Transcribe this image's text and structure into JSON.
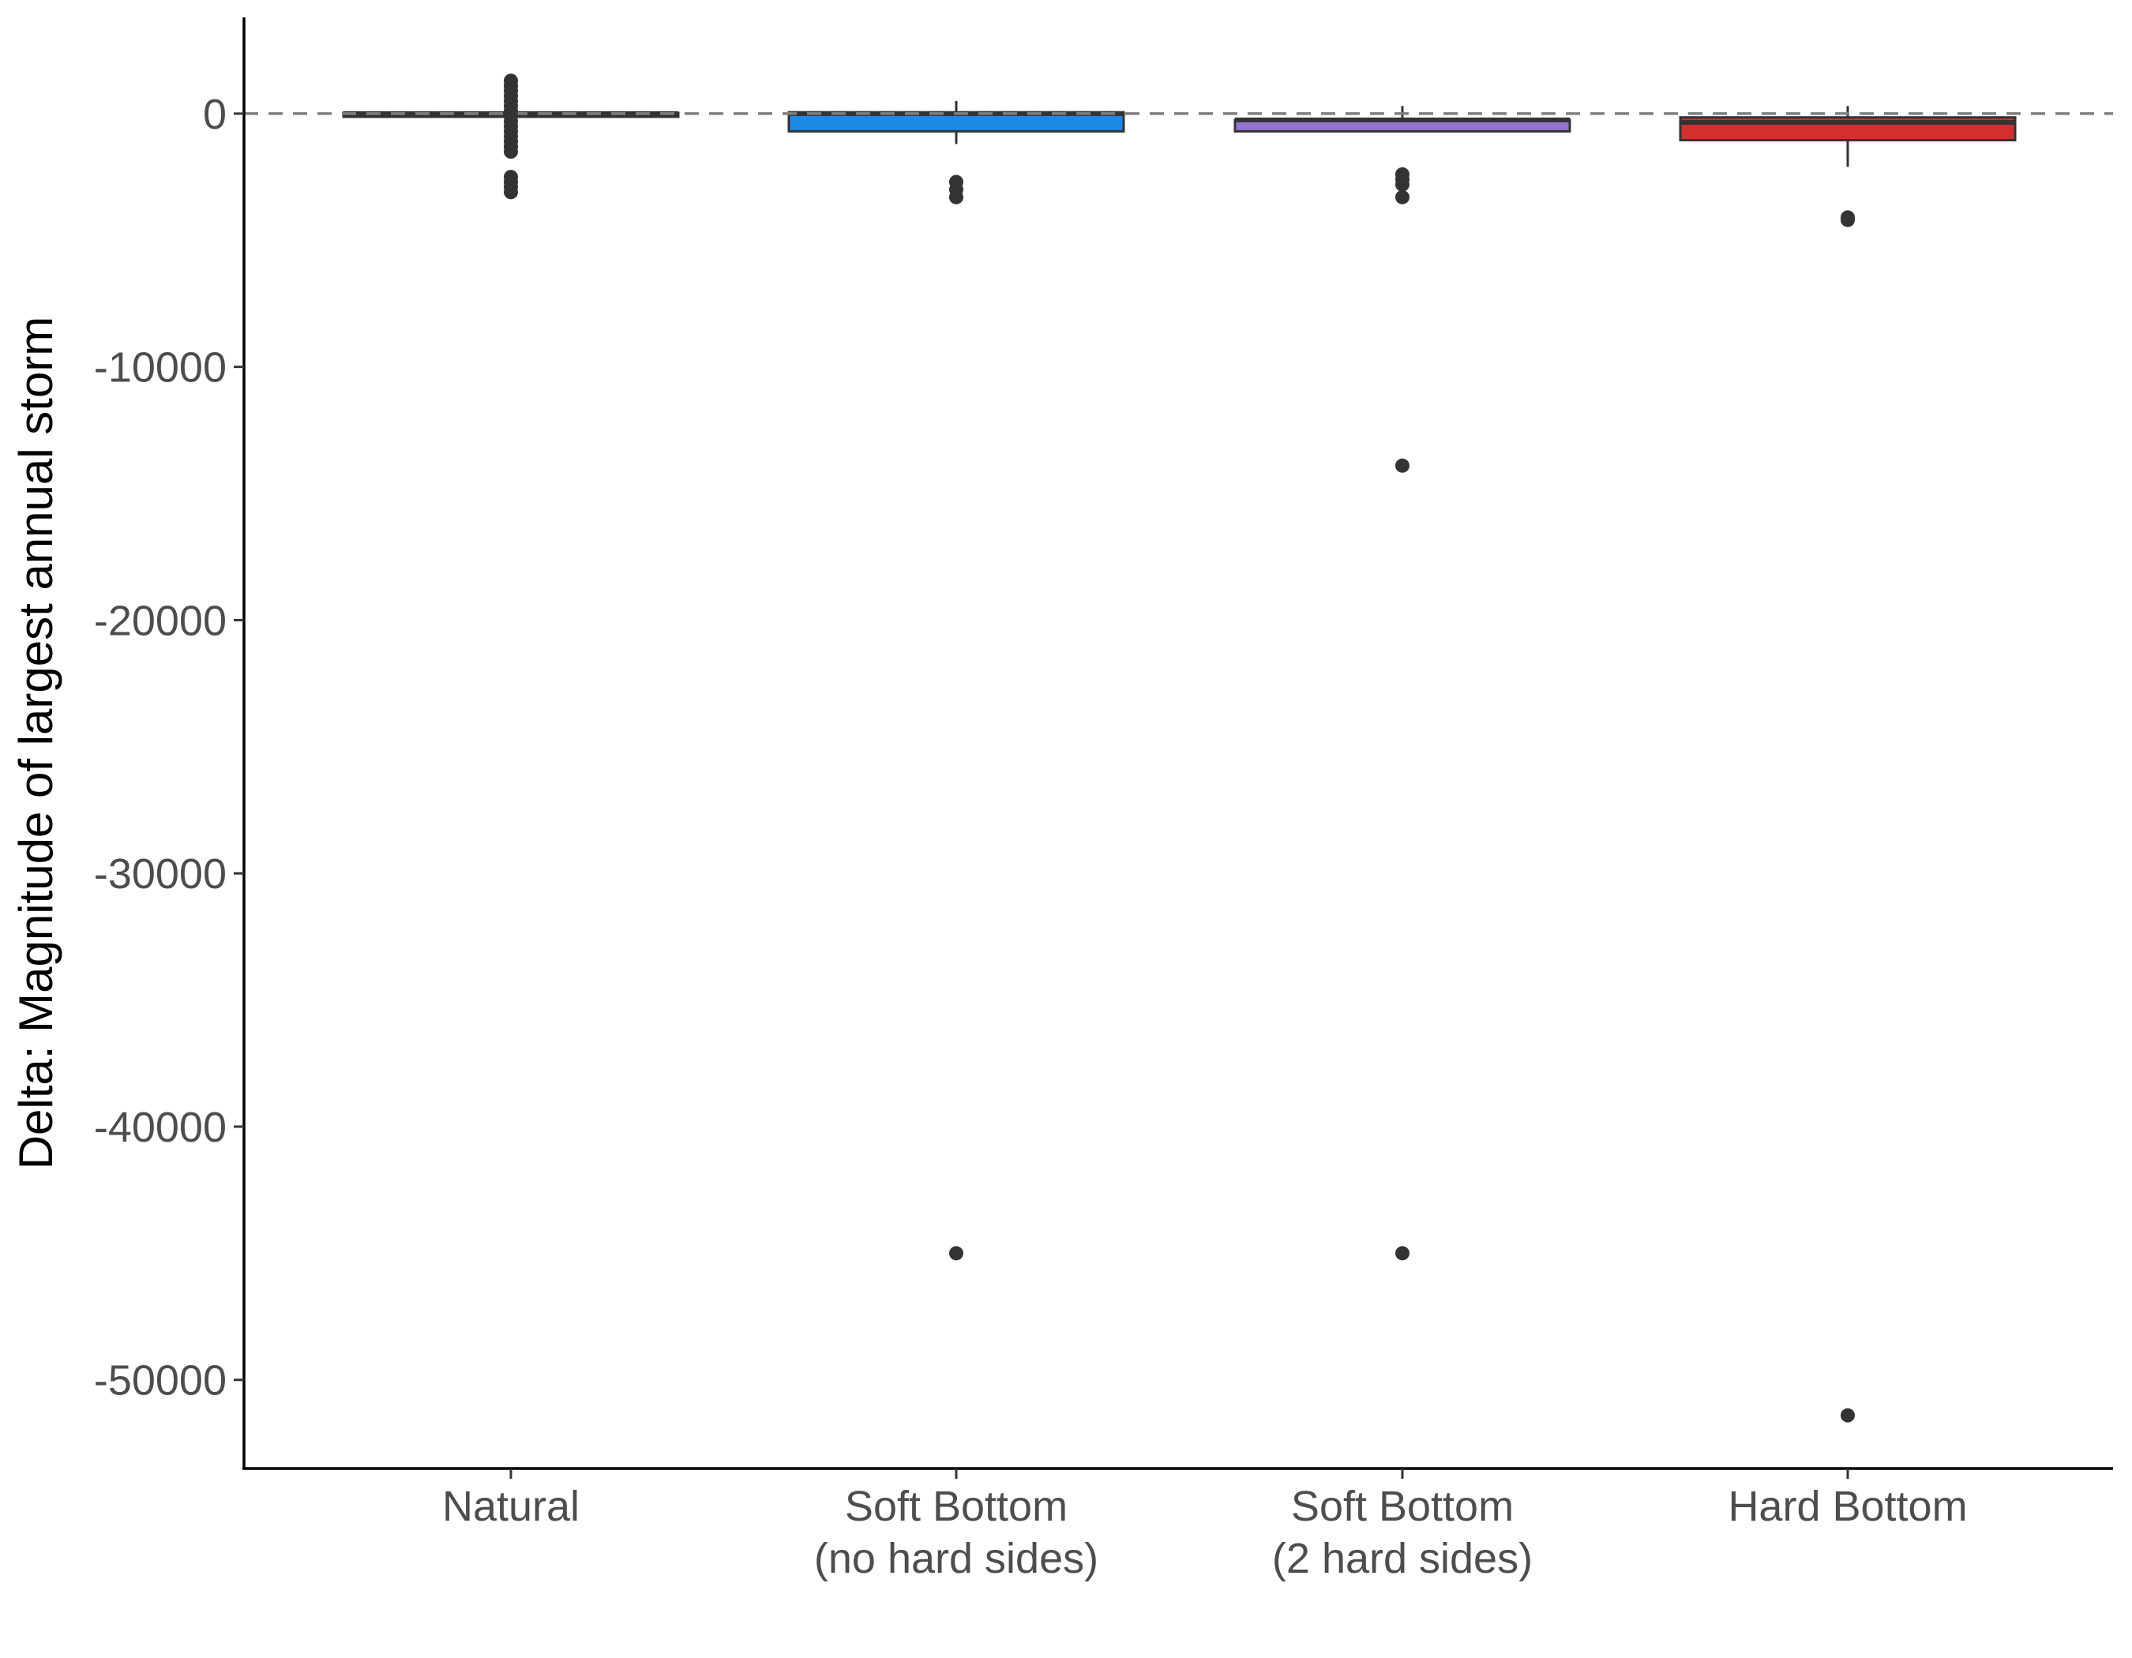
{
  "chart_data": {
    "type": "boxplot",
    "title": "",
    "xlabel": "",
    "ylabel": "Delta: Magnitude of largest annual storm",
    "ylim": [
      -53500,
      3800
    ],
    "yticks": [
      0,
      -10000,
      -20000,
      -30000,
      -40000,
      -50000
    ],
    "ytick_labels": [
      "0",
      "-10000",
      "-20000",
      "-30000",
      "-40000",
      "-50000"
    ],
    "reference_line": {
      "y": 0,
      "style": "dashed",
      "color": "#7f7f7f"
    },
    "grid": false,
    "legend": "none",
    "categories": [
      {
        "label_lines": [
          "Natural"
        ]
      },
      {
        "label_lines": [
          "Soft Bottom",
          "(no hard sides)"
        ]
      },
      {
        "label_lines": [
          "Soft Bottom",
          "(2 hard sides)"
        ]
      },
      {
        "label_lines": [
          "Hard Bottom"
        ]
      }
    ],
    "series": [
      {
        "fill": "#bdbdbd",
        "whisker_low": -60,
        "q1": -40,
        "median": 0,
        "q3": 30,
        "whisker_high": 60,
        "outliers": [
          1300,
          1100,
          900,
          700,
          500,
          300,
          100,
          -100,
          -300,
          -500,
          -700,
          -900,
          -1100,
          -1300,
          -1500,
          -2500,
          -2700,
          -2900,
          -3100
        ]
      },
      {
        "fill": "#1e88e5",
        "whisker_low": -1200,
        "q1": -700,
        "median": 0,
        "q3": 50,
        "whisker_high": 500,
        "outliers": [
          -2700,
          -3000,
          -3300,
          -45000
        ]
      },
      {
        "fill": "#9575cd",
        "whisker_low": -700,
        "q1": -700,
        "median": -250,
        "q3": -250,
        "whisker_high": 300,
        "outliers": [
          -2400,
          -2600,
          -2800,
          -3300,
          -13900,
          -45000
        ]
      },
      {
        "fill": "#d32f2f",
        "whisker_low": -2100,
        "q1": -1050,
        "median": -350,
        "q3": -150,
        "whisker_high": 300,
        "outliers": [
          -4100,
          -4200,
          -51400
        ]
      }
    ]
  }
}
